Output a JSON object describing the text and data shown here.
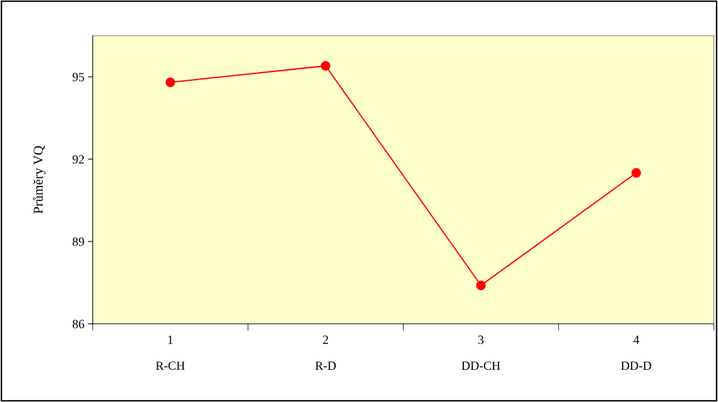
{
  "chart_data": {
    "type": "line",
    "ylabel": "Průměry VQ",
    "categories": [
      "1\n\nR-CH",
      "2\n\nR-D",
      "3\n\nDD-CH",
      "4\n\nDD-D"
    ],
    "series": [
      {
        "color": "#ff0000",
        "values": [
          94.8,
          95.4,
          87.4,
          91.5
        ]
      }
    ],
    "ylim": [
      86,
      96.5
    ],
    "yticks": [
      86,
      89,
      92,
      95
    ],
    "grid": false,
    "legend": false,
    "marker": "circle",
    "line_style": "solid"
  }
}
